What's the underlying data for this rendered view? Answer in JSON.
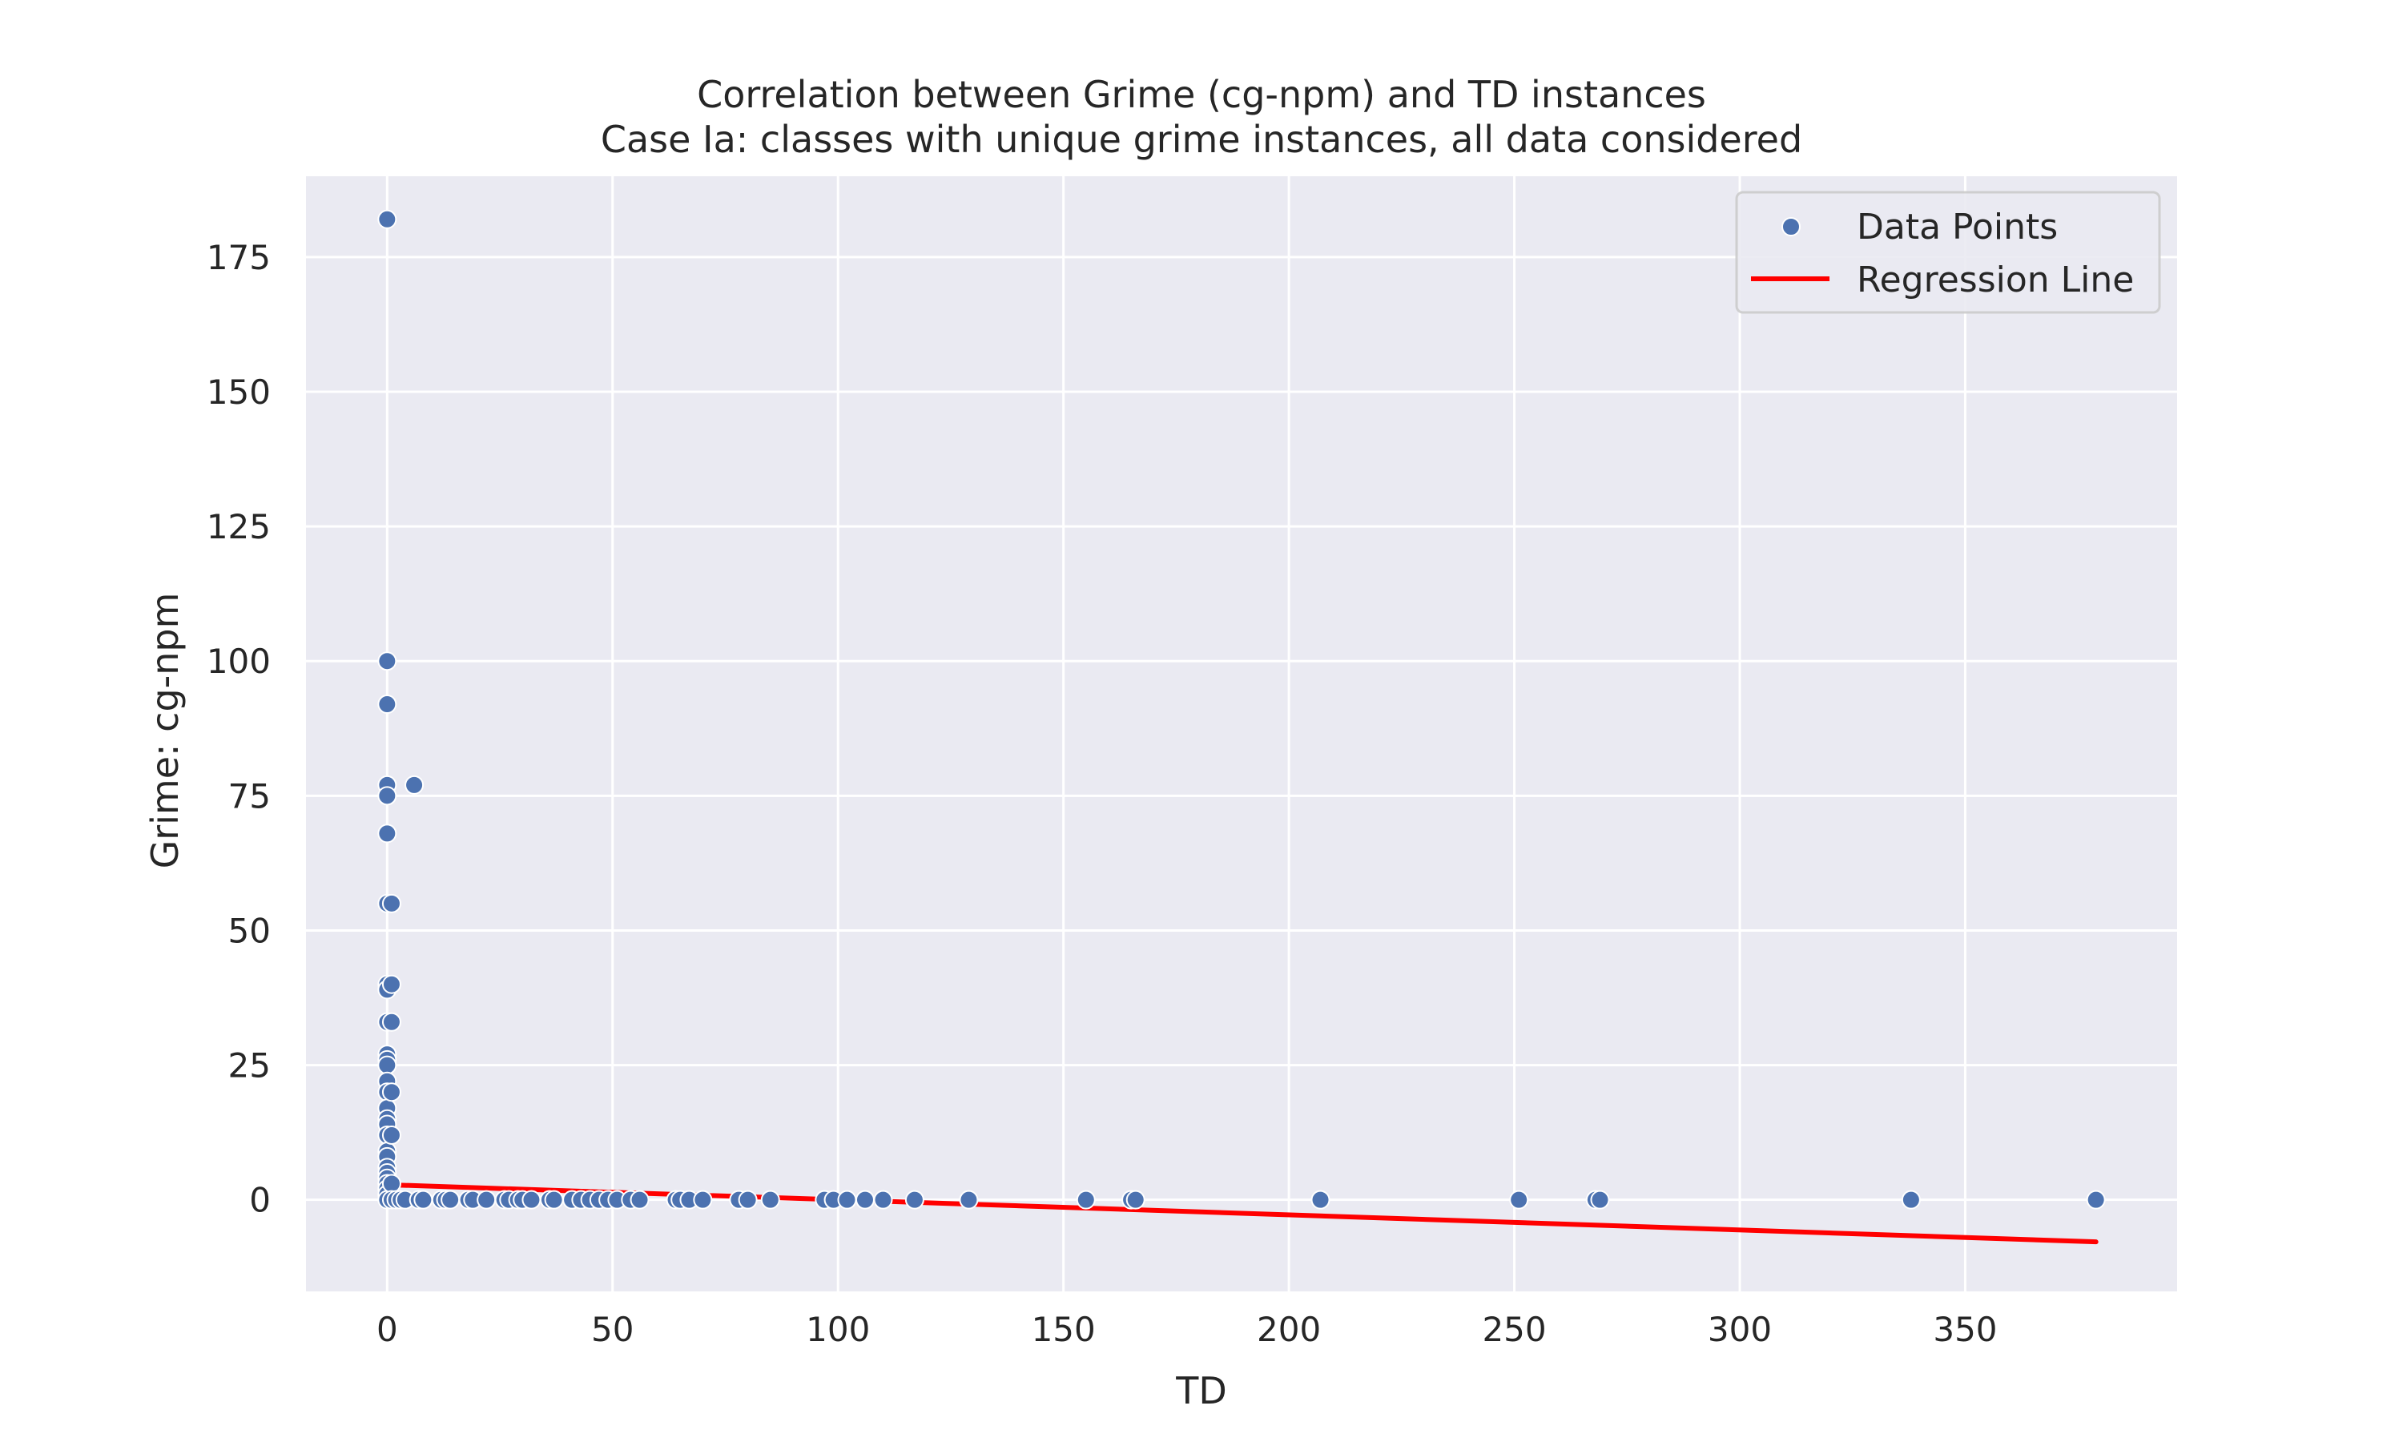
{
  "chart_data": {
    "type": "scatter",
    "title": "Correlation between Grime (cg-npm) and TD instances",
    "subtitle": "Case Ia: classes with unique grime instances, all data considered",
    "xlabel": "TD",
    "ylabel": "Grime: cg-npm",
    "xlim": [
      -18,
      397
    ],
    "ylim": [
      -17,
      190
    ],
    "xticks": [
      0,
      50,
      100,
      150,
      200,
      250,
      300,
      350
    ],
    "yticks": [
      0,
      25,
      50,
      75,
      100,
      125,
      150,
      175
    ],
    "xtick_labels": [
      "0",
      "50",
      "100",
      "150",
      "200",
      "250",
      "300",
      "350"
    ],
    "ytick_labels": [
      "0",
      "25",
      "50",
      "75",
      "100",
      "125",
      "150",
      "175"
    ],
    "grid": true,
    "legend_position": "top-right",
    "legend": [
      "Data Points",
      "Regression Line"
    ],
    "colors": {
      "points": "#4c72b0",
      "regression": "#ff0000",
      "background": "#eaeaf2",
      "grid": "#ffffff"
    },
    "series": [
      {
        "name": "Data Points",
        "kind": "scatter",
        "points": [
          [
            0,
            182
          ],
          [
            0,
            100
          ],
          [
            0,
            92
          ],
          [
            0,
            77
          ],
          [
            0,
            75
          ],
          [
            0,
            68
          ],
          [
            0,
            55
          ],
          [
            0,
            40
          ],
          [
            0,
            39
          ],
          [
            0,
            33
          ],
          [
            0,
            27
          ],
          [
            0,
            26
          ],
          [
            0,
            25
          ],
          [
            0,
            22
          ],
          [
            0,
            20
          ],
          [
            0,
            17
          ],
          [
            0,
            15
          ],
          [
            0,
            14
          ],
          [
            0,
            12
          ],
          [
            0,
            9
          ],
          [
            0,
            8
          ],
          [
            0,
            6
          ],
          [
            0,
            5
          ],
          [
            0,
            4
          ],
          [
            0,
            3
          ],
          [
            0,
            2
          ],
          [
            0,
            1
          ],
          [
            0,
            0
          ],
          [
            6,
            77
          ],
          [
            1,
            55
          ],
          [
            1,
            40
          ],
          [
            1,
            33
          ],
          [
            1,
            20
          ],
          [
            1,
            12
          ],
          [
            1,
            3
          ],
          [
            1,
            0
          ],
          [
            2,
            0
          ],
          [
            3,
            0
          ],
          [
            4,
            0
          ],
          [
            7,
            0
          ],
          [
            8,
            0
          ],
          [
            12,
            0
          ],
          [
            13,
            0
          ],
          [
            14,
            0
          ],
          [
            18,
            0
          ],
          [
            19,
            0
          ],
          [
            22,
            0
          ],
          [
            26,
            0
          ],
          [
            27,
            0
          ],
          [
            29,
            0
          ],
          [
            30,
            0
          ],
          [
            32,
            0
          ],
          [
            36,
            0
          ],
          [
            37,
            0
          ],
          [
            41,
            0
          ],
          [
            43,
            0
          ],
          [
            45,
            0
          ],
          [
            47,
            0
          ],
          [
            49,
            0
          ],
          [
            51,
            0
          ],
          [
            54,
            0
          ],
          [
            56,
            0
          ],
          [
            64,
            0
          ],
          [
            65,
            0
          ],
          [
            67,
            0
          ],
          [
            70,
            0
          ],
          [
            78,
            0
          ],
          [
            80,
            0
          ],
          [
            85,
            0
          ],
          [
            97,
            0
          ],
          [
            99,
            0
          ],
          [
            102,
            0
          ],
          [
            106,
            0
          ],
          [
            110,
            0
          ],
          [
            117,
            0
          ],
          [
            129,
            0
          ],
          [
            155,
            0
          ],
          [
            165,
            0
          ],
          [
            166,
            0
          ],
          [
            207,
            0
          ],
          [
            251,
            0
          ],
          [
            268,
            0
          ],
          [
            269,
            0
          ],
          [
            338,
            0
          ],
          [
            379,
            0
          ]
        ]
      },
      {
        "name": "Regression Line",
        "kind": "line",
        "x": [
          0,
          379
        ],
        "y": [
          2.8,
          -7.8
        ]
      }
    ]
  }
}
